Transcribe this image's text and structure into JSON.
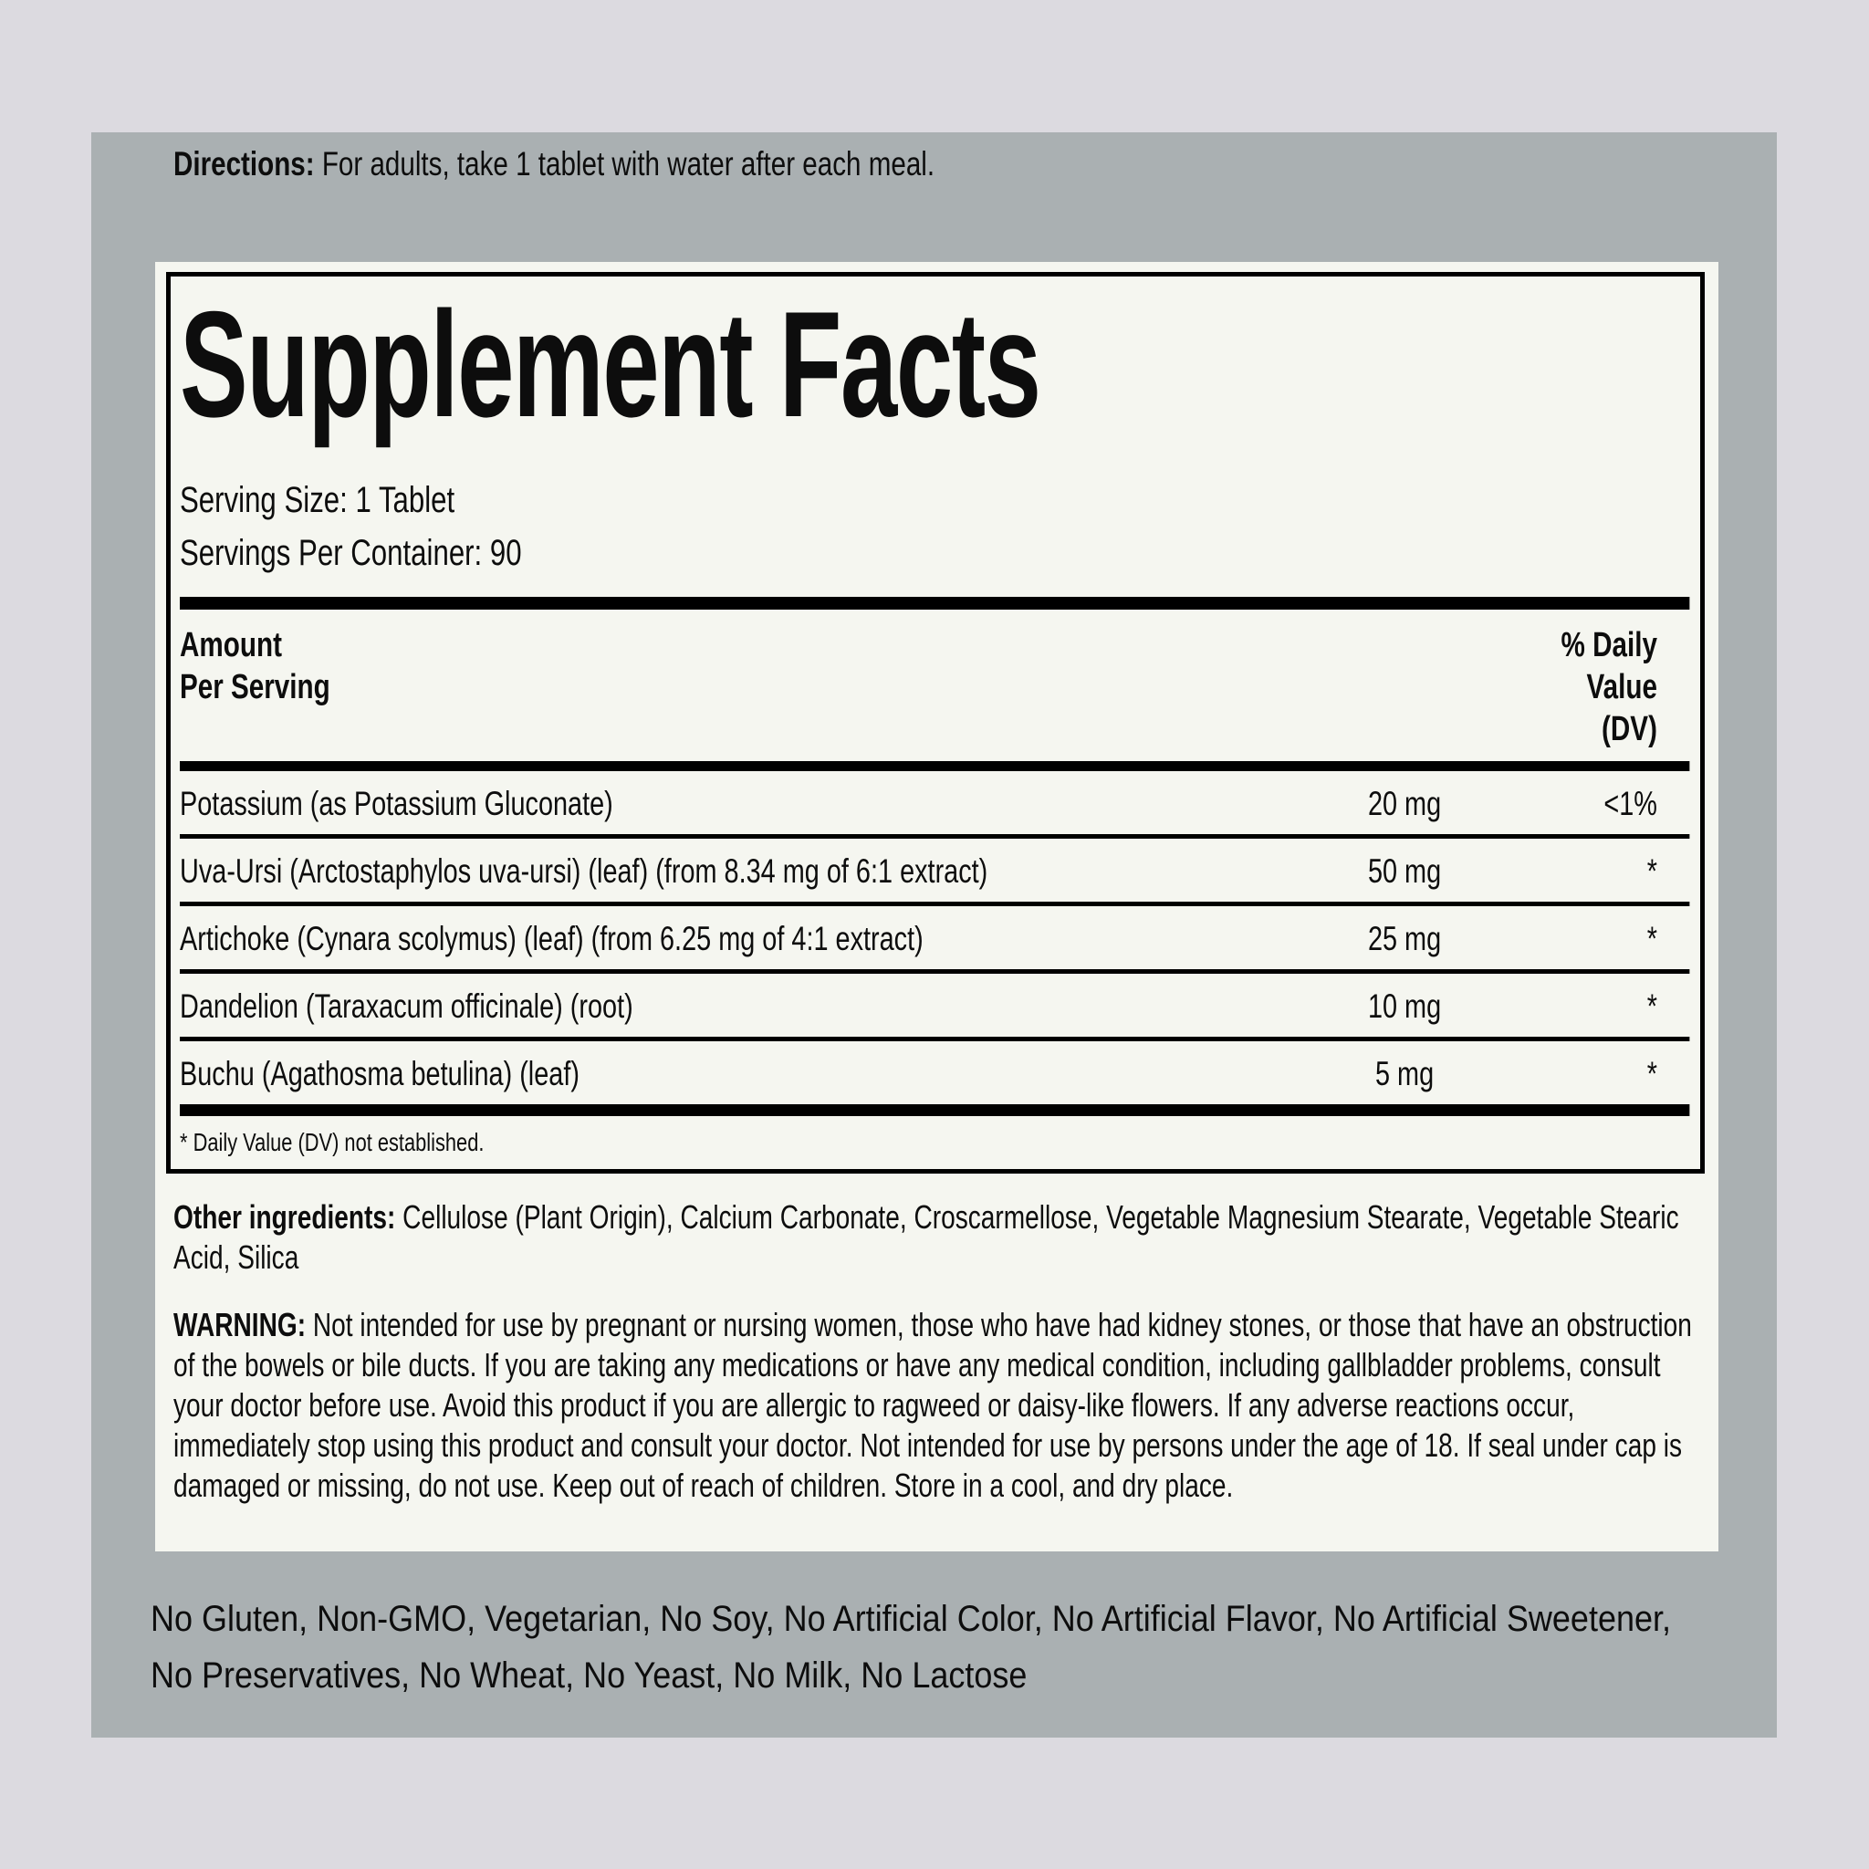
{
  "colors": {
    "page_bg": "#dcdae0",
    "panel_bg": "#aab0b2",
    "label_bg": "#f5f6f0",
    "ink": "#0d0d0d"
  },
  "directions": {
    "label": "Directions:",
    "text": " For adults, take 1 tablet with water after each meal."
  },
  "supplement_facts": {
    "title": "Supplement Facts",
    "serving_size": "Serving Size: 1 Tablet",
    "servings_per_container": "Servings Per Container: 90",
    "amount_header": [
      "Amount",
      "Per Serving"
    ],
    "dv_header": [
      "% Daily",
      "Value",
      "(DV)"
    ],
    "rows": [
      {
        "name": "Potassium (as Potassium Gluconate)",
        "amount": "20 mg",
        "dv": "<1%"
      },
      {
        "name": "Uva-Ursi (Arctostaphylos uva-ursi) (leaf) (from 8.34 mg of 6:1 extract)",
        "amount": "50 mg",
        "dv": "*"
      },
      {
        "name": "Artichoke (Cynara scolymus) (leaf) (from 6.25 mg of 4:1 extract)",
        "amount": "25 mg",
        "dv": "*"
      },
      {
        "name": "Dandelion (Taraxacum officinale) (root)",
        "amount": "10 mg",
        "dv": "*"
      },
      {
        "name": "Buchu (Agathosma betulina) (leaf)",
        "amount": "5 mg",
        "dv": "*"
      }
    ],
    "footnote": "* Daily Value (DV) not established."
  },
  "other_ingredients": {
    "label": "Other ingredients:",
    "text": " Cellulose (Plant Origin), Calcium Carbonate, Croscarmellose, Vegetable Magnesium Stearate, Vegetable Stearic Acid, Silica"
  },
  "warning": {
    "label": "WARNING:",
    "text": " Not intended for use by pregnant or nursing women, those who have had kidney stones, or those that have an obstruction of the bowels or bile ducts. If you are taking any medications or have any medical condition, including gallbladder problems, consult your doctor before use. Avoid this product if you are allergic to ragweed or daisy-like flowers. If any adverse reactions occur, immediately stop using this product and consult your doctor. Not intended for use by persons under the age of 18. If seal under cap is damaged or missing, do not use. Keep out of reach of children. Store in a cool, and dry place."
  },
  "claims": {
    "text": "No Gluten, Non-GMO, Vegetarian, No Soy, No Artificial Color, No Artificial Flavor, No Artificial Sweetener, No Preservatives, No Wheat, No Yeast, No Milk, No Lactose"
  }
}
